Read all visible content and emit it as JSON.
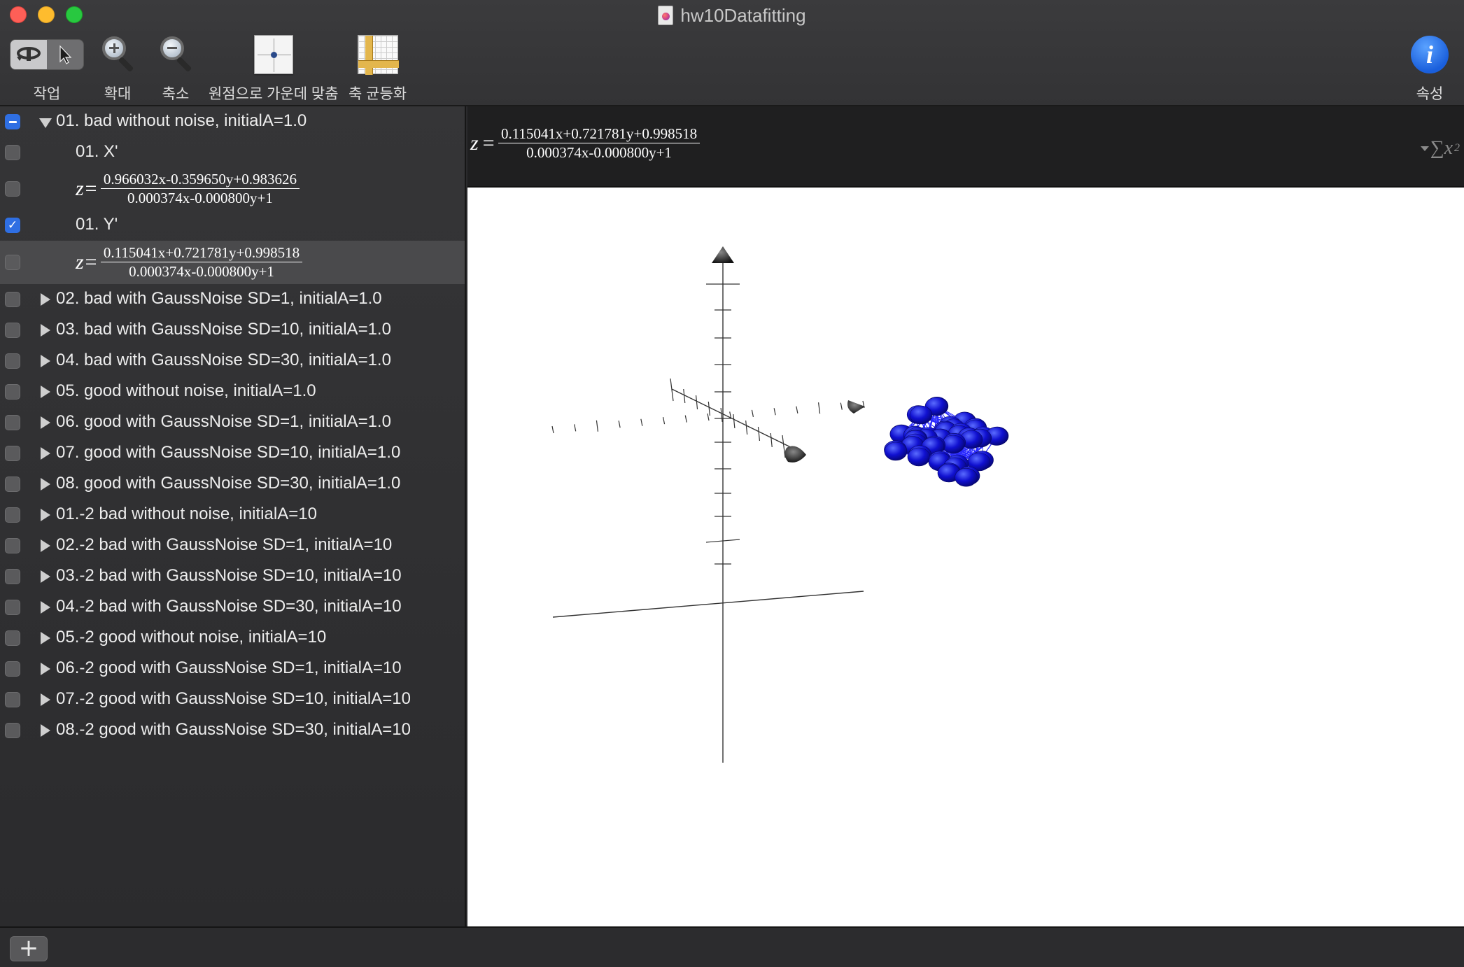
{
  "window": {
    "title": "hw10Datafitting"
  },
  "toolbar": {
    "action_label": "작업",
    "zoom_in_label": "확대",
    "zoom_out_label": "축소",
    "center_origin_label": "원점으로 가운데 맞춤",
    "equalize_axes_label": "축 균등화",
    "properties_label": "속성"
  },
  "sidebar": {
    "group1": {
      "label": "01. bad without noise, initialA=1.0",
      "check_state": "mixed",
      "children": [
        {
          "label": "01. X'",
          "checked": false
        },
        {
          "num": "0.966032x-0.359650y+0.983626",
          "den": "0.000374x-0.000800y+1",
          "checked": false
        },
        {
          "label": "01. Y'",
          "checked": true
        },
        {
          "num": "0.115041x+0.721781y+0.998518",
          "den": "0.000374x-0.000800y+1",
          "checked": false,
          "selected": true
        }
      ]
    },
    "items": [
      "02. bad with GaussNoise SD=1, initialA=1.0",
      "03. bad with GaussNoise SD=10, initialA=1.0",
      "04. bad with GaussNoise SD=30, initialA=1.0",
      "05. good without noise, initialA=1.0",
      "06. good with GaussNoise SD=1, initialA=1.0",
      "07. good with GaussNoise SD=10, initialA=1.0",
      "08. good with GaussNoise SD=30, initialA=1.0",
      "01.-2 bad without noise, initialA=10",
      "02.-2 bad with GaussNoise SD=1, initialA=10",
      "03.-2 bad with GaussNoise SD=10, initialA=10",
      "04.-2 bad with GaussNoise SD=30, initialA=10",
      "05.-2 good without noise, initialA=10",
      "06.-2 good with GaussNoise SD=1, initialA=10",
      "07.-2 good with GaussNoise SD=10, initialA=10",
      "08.-2 good with GaussNoise SD=30, initialA=10"
    ]
  },
  "formula_bar": {
    "z": "z",
    "num": "0.115041x+0.721781y+0.998518",
    "den": "0.000374x-0.000800y+1",
    "sum_symbol": "∑x",
    "sum_sup": "2"
  },
  "colors": {
    "points": "#1414d8",
    "links": "#2b2bff",
    "axes": "#333333",
    "selection": "#2f6fe3"
  }
}
